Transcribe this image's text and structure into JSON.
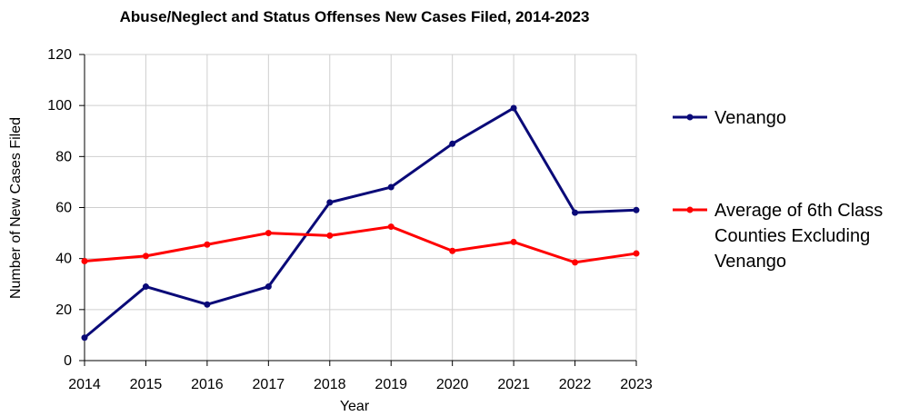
{
  "chart_data": {
    "type": "line",
    "title": "Abuse/Neglect and Status Offenses New Cases Filed, 2014-2023",
    "xlabel": "Year",
    "ylabel": "Number of New Cases Filed",
    "x": [
      "2014",
      "2015",
      "2016",
      "2017",
      "2018",
      "2019",
      "2020",
      "2021",
      "2022",
      "2023"
    ],
    "ylim": [
      0,
      120
    ],
    "yticks": [
      "0",
      "20",
      "40",
      "60",
      "80",
      "100",
      "120"
    ],
    "grid": true,
    "legend_position": "right",
    "series": [
      {
        "name": "Venango",
        "color": "#0a0a78",
        "values": [
          9,
          29,
          22,
          29,
          62,
          68,
          85,
          99,
          58,
          59
        ]
      },
      {
        "name": "Average of 6th Class Counties Excluding Venango",
        "name_lines": [
          "Average of 6th Class",
          "Counties Excluding",
          "Venango"
        ],
        "color": "#ff0000",
        "values": [
          39,
          41,
          45.5,
          50,
          49,
          52.5,
          43,
          46.5,
          38.5,
          42
        ]
      }
    ]
  }
}
